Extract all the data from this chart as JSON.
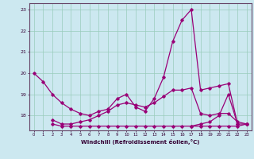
{
  "xlabel": "Windchill (Refroidissement éolien,°C)",
  "bg_color": "#cce8f0",
  "grid_color": "#99ccbb",
  "line_color": "#990077",
  "xlim": [
    -0.5,
    23.5
  ],
  "ylim": [
    17.3,
    23.3
  ],
  "yticks": [
    18,
    19,
    20,
    21,
    22,
    23
  ],
  "xticks": [
    0,
    1,
    2,
    3,
    4,
    5,
    6,
    7,
    8,
    9,
    10,
    11,
    12,
    13,
    14,
    15,
    16,
    17,
    18,
    19,
    20,
    21,
    22,
    23
  ],
  "series": [
    [
      20.0,
      19.6,
      19.0,
      18.6,
      18.3,
      18.1,
      18.0,
      18.2,
      18.3,
      18.8,
      19.0,
      18.4,
      18.2,
      18.8,
      19.8,
      21.5,
      22.5,
      23.0,
      19.2,
      19.3,
      19.4,
      19.5,
      17.6,
      17.6
    ],
    [
      null,
      null,
      17.6,
      17.5,
      17.5,
      17.5,
      17.5,
      17.5,
      17.5,
      17.5,
      17.5,
      17.5,
      17.5,
      17.5,
      17.5,
      17.5,
      17.5,
      17.5,
      17.5,
      17.5,
      17.5,
      17.5,
      17.5,
      17.6
    ],
    [
      null,
      null,
      17.8,
      17.6,
      17.6,
      17.7,
      17.8,
      18.0,
      18.2,
      18.5,
      18.6,
      18.5,
      18.4,
      18.6,
      18.9,
      19.2,
      19.2,
      19.3,
      18.1,
      18.0,
      18.1,
      18.1,
      17.7,
      17.6
    ],
    [
      null,
      null,
      null,
      null,
      null,
      null,
      null,
      null,
      null,
      null,
      null,
      null,
      null,
      null,
      null,
      null,
      null,
      17.5,
      17.6,
      17.7,
      18.0,
      19.0,
      17.6,
      null
    ]
  ]
}
